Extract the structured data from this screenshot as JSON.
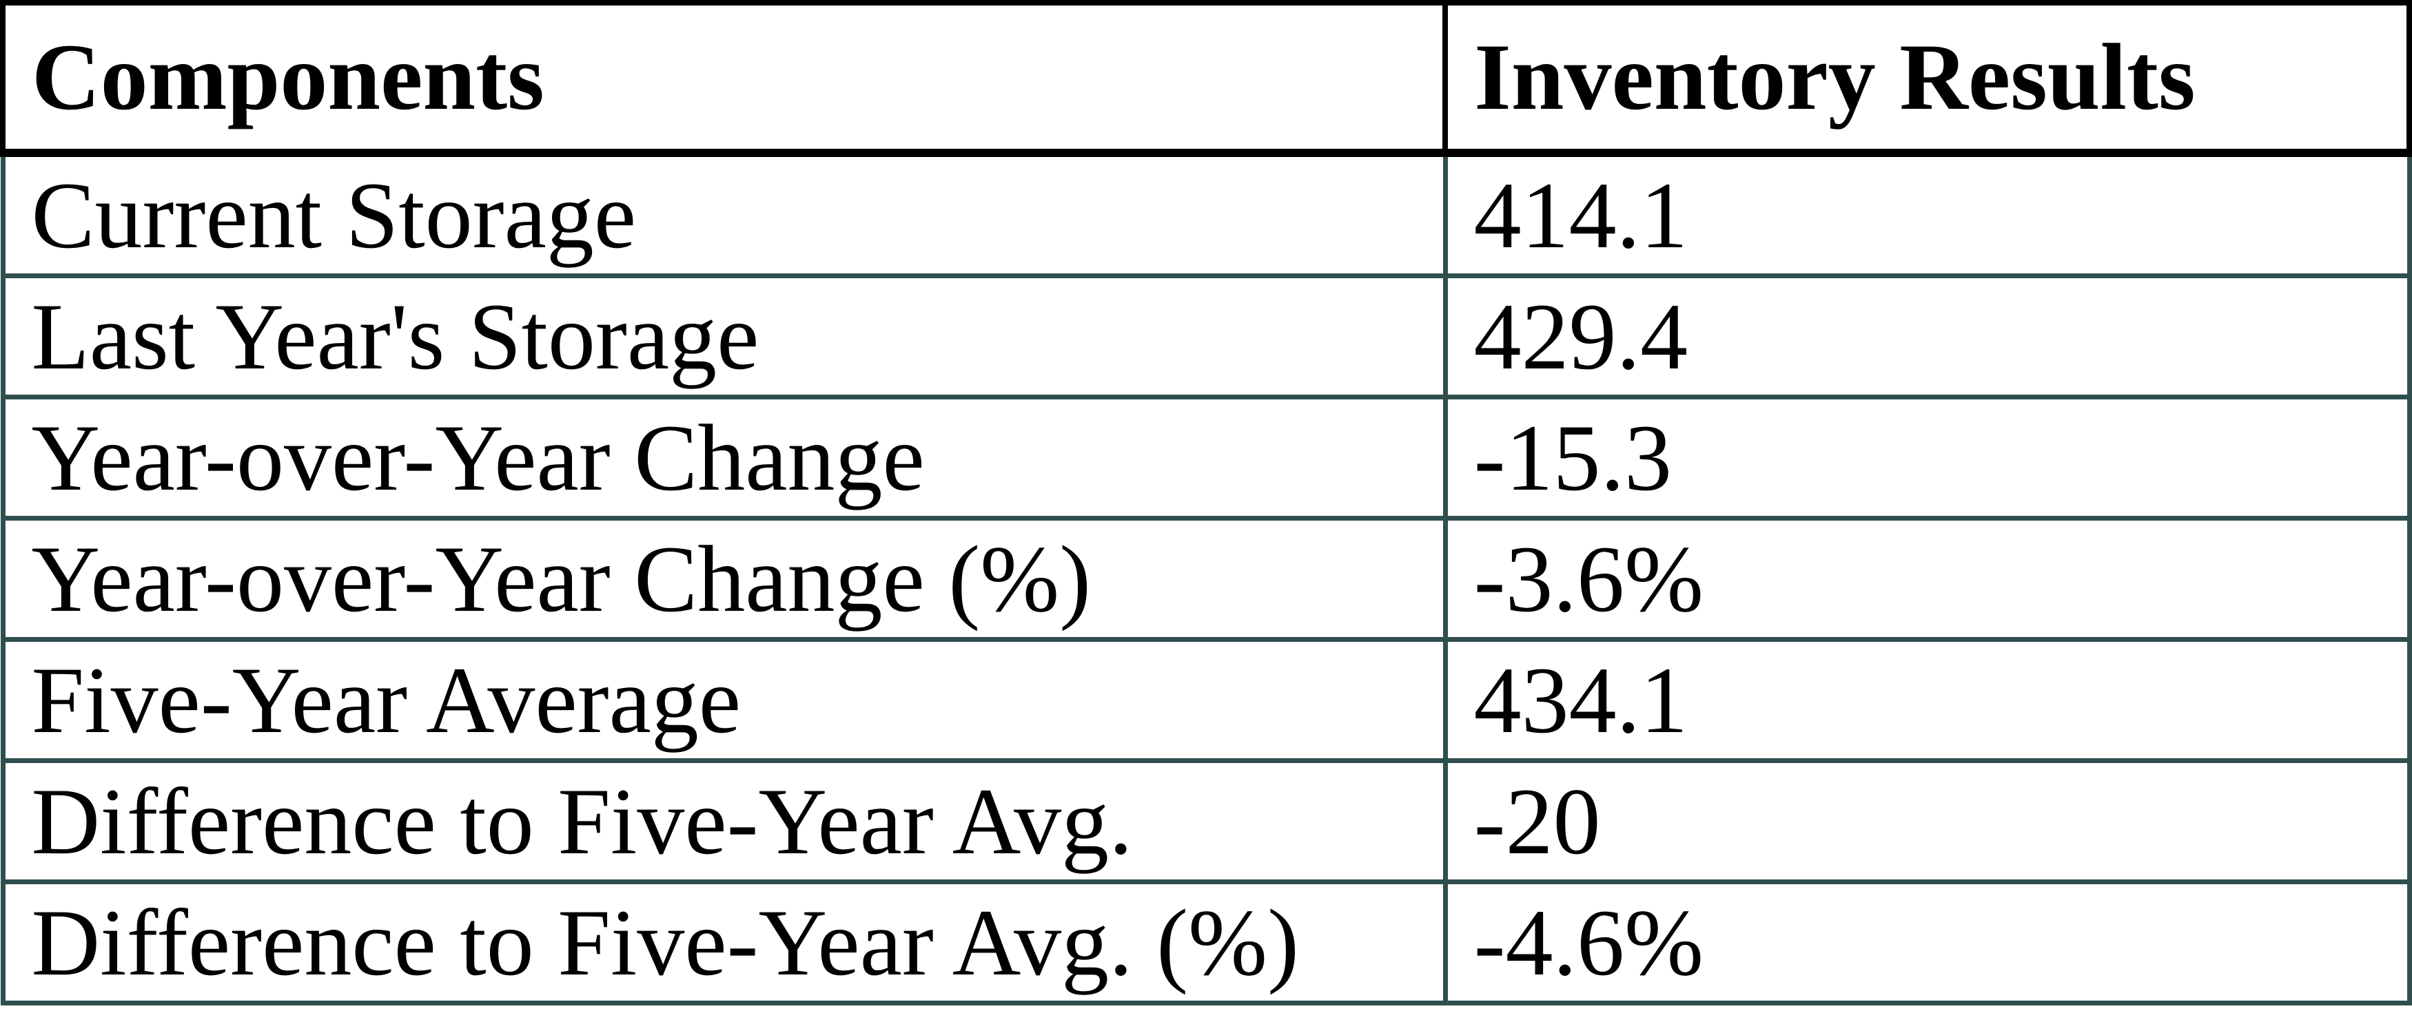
{
  "table": {
    "columns": [
      "Components",
      "Inventory Results"
    ],
    "rows": [
      {
        "label": "Current Storage",
        "value": "414.1"
      },
      {
        "label": "Last Year's Storage",
        "value": "429.4"
      },
      {
        "label": "Year-over-Year Change",
        "value": "-15.3"
      },
      {
        "label": "Year-over-Year Change (%)",
        "value": "-3.6%"
      },
      {
        "label": "Five-Year Average",
        "value": "434.1"
      },
      {
        "label": "Difference to Five-Year Avg.",
        "value": "-20"
      },
      {
        "label": "Difference to Five-Year Avg. (%)",
        "value": "-4.6%"
      }
    ],
    "colors": {
      "header_border": "#000000",
      "body_border": "#2F4F4F",
      "text": "#000000",
      "background": "#FFFFFF"
    }
  },
  "chart_data": {
    "type": "table",
    "columns": [
      "Components",
      "Inventory Results"
    ],
    "rows": [
      [
        "Current Storage",
        "414.1"
      ],
      [
        "Last Year's Storage",
        "429.4"
      ],
      [
        "Year-over-Year Change",
        "-15.3"
      ],
      [
        "Year-over-Year Change (%)",
        "-3.6%"
      ],
      [
        "Five-Year Average",
        "434.1"
      ],
      [
        "Difference to Five-Year Avg.",
        "-20"
      ],
      [
        "Difference to Five-Year Avg. (%)",
        "-4.6%"
      ]
    ],
    "values_numeric": [
      414.1,
      429.4,
      -15.3,
      -3.6,
      434.1,
      -20,
      -4.6
    ],
    "layout": {
      "grid": true,
      "header_row": true
    }
  }
}
